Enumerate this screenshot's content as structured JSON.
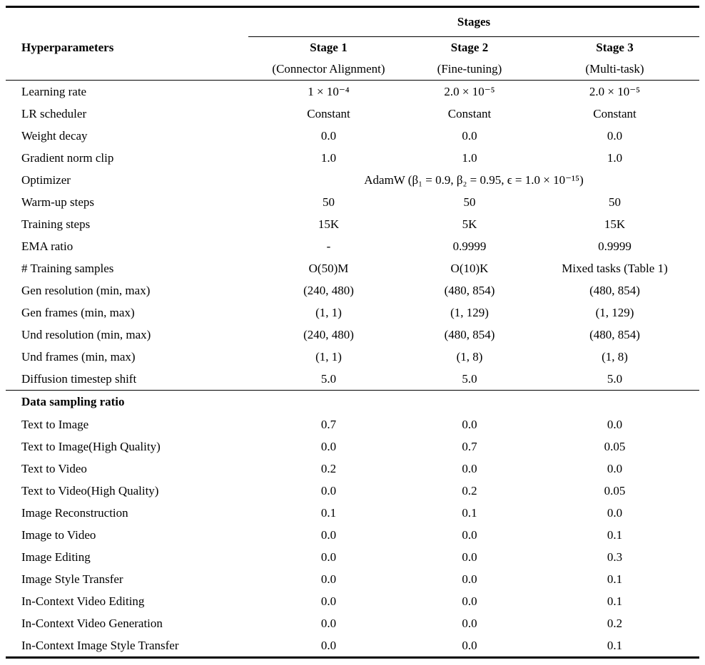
{
  "table": {
    "stages_label": "Stages",
    "col1_label": "Hyperparameters",
    "columns": [
      {
        "title": "Stage 1",
        "subtitle": "(Connector Alignment)"
      },
      {
        "title": "Stage 2",
        "subtitle": "(Fine-tuning)"
      },
      {
        "title": "Stage 3",
        "subtitle": "(Multi-task)"
      }
    ],
    "sections": [
      {
        "title": "",
        "rows": [
          {
            "label": "Learning rate",
            "values": [
              "1 × 10⁻⁴",
              "2.0 × 10⁻⁵",
              "2.0 × 10⁻⁵"
            ]
          },
          {
            "label": "LR scheduler",
            "values": [
              "Constant",
              "Constant",
              "Constant"
            ]
          },
          {
            "label": "Weight decay",
            "values": [
              "0.0",
              "0.0",
              "0.0"
            ]
          },
          {
            "label": "Gradient norm clip",
            "values": [
              "1.0",
              "1.0",
              "1.0"
            ]
          },
          {
            "label": "Optimizer",
            "span": true,
            "values": [
              "AdamW (β₁ = 0.9, β₂ = 0.95, ϵ = 1.0 × 10⁻¹⁵)"
            ]
          },
          {
            "label": "Warm-up steps",
            "values": [
              "50",
              "50",
              "50"
            ]
          },
          {
            "label": "Training steps",
            "values": [
              "15K",
              "5K",
              "15K"
            ]
          },
          {
            "label": "EMA ratio",
            "values": [
              "-",
              "0.9999",
              "0.9999"
            ]
          },
          {
            "label": "# Training samples",
            "values": [
              "O(50)M",
              "O(10)K",
              "Mixed tasks (Table 1)"
            ]
          },
          {
            "label": "Gen resolution (min, max)",
            "values": [
              "(240, 480)",
              "(480, 854)",
              "(480, 854)"
            ]
          },
          {
            "label": "Gen frames (min, max)",
            "values": [
              "(1, 1)",
              "(1, 129)",
              "(1, 129)"
            ]
          },
          {
            "label": "Und resolution (min, max)",
            "values": [
              "(240, 480)",
              "(480, 854)",
              "(480, 854)"
            ]
          },
          {
            "label": "Und frames (min, max)",
            "values": [
              "(1, 1)",
              "(1, 8)",
              "(1, 8)"
            ]
          },
          {
            "label": "Diffusion timestep shift",
            "values": [
              "5.0",
              "5.0",
              "5.0"
            ]
          }
        ]
      },
      {
        "title": "Data sampling ratio",
        "rows": [
          {
            "label": "Text to Image",
            "values": [
              "0.7",
              "0.0",
              "0.0"
            ]
          },
          {
            "label": "Text to Image(High Quality)",
            "values": [
              "0.0",
              "0.7",
              "0.05"
            ]
          },
          {
            "label": "Text to Video",
            "values": [
              "0.2",
              "0.0",
              "0.0"
            ]
          },
          {
            "label": "Text to Video(High Quality)",
            "values": [
              "0.0",
              "0.2",
              "0.05"
            ]
          },
          {
            "label": "Image Reconstruction",
            "values": [
              "0.1",
              "0.1",
              "0.0"
            ]
          },
          {
            "label": "Image to Video",
            "values": [
              "0.0",
              "0.0",
              "0.1"
            ]
          },
          {
            "label": "Image Editing",
            "values": [
              "0.0",
              "0.0",
              "0.3"
            ]
          },
          {
            "label": "Image Style Transfer",
            "values": [
              "0.0",
              "0.0",
              "0.1"
            ]
          },
          {
            "label": "In-Context Video Editing",
            "values": [
              "0.0",
              "0.0",
              "0.1"
            ]
          },
          {
            "label": "In-Context Video Generation",
            "values": [
              "0.0",
              "0.0",
              "0.2"
            ]
          },
          {
            "label": "In-Context Image Style Transfer",
            "values": [
              "0.0",
              "0.0",
              "0.1"
            ]
          }
        ]
      }
    ]
  }
}
